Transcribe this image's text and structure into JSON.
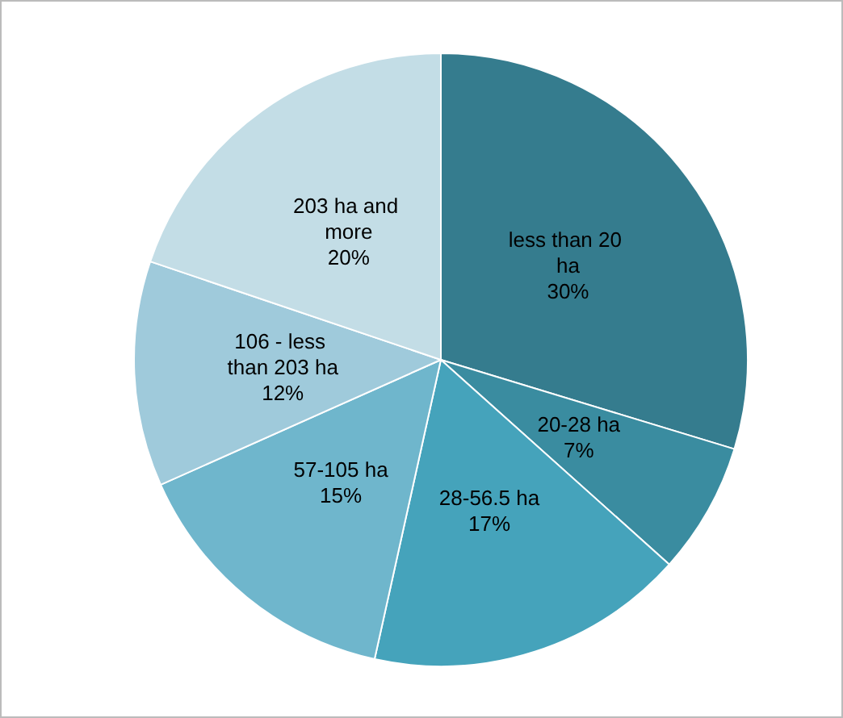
{
  "chart_data": {
    "type": "pie",
    "categories": [
      "less than 20 ha",
      "20-28 ha",
      "28-56.5 ha",
      "57-105 ha",
      "106 - less than 203 ha",
      "203 ha and more"
    ],
    "values": [
      30,
      7,
      17,
      15,
      12,
      20
    ],
    "value_labels": [
      "30%",
      "7%",
      "17%",
      "15%",
      "12%",
      "20%"
    ],
    "colors": [
      "#357c8e",
      "#3a8ca0",
      "#45a3bb",
      "#6fb6cc",
      "#9fcadb",
      "#c3dde6"
    ],
    "legend": false
  }
}
